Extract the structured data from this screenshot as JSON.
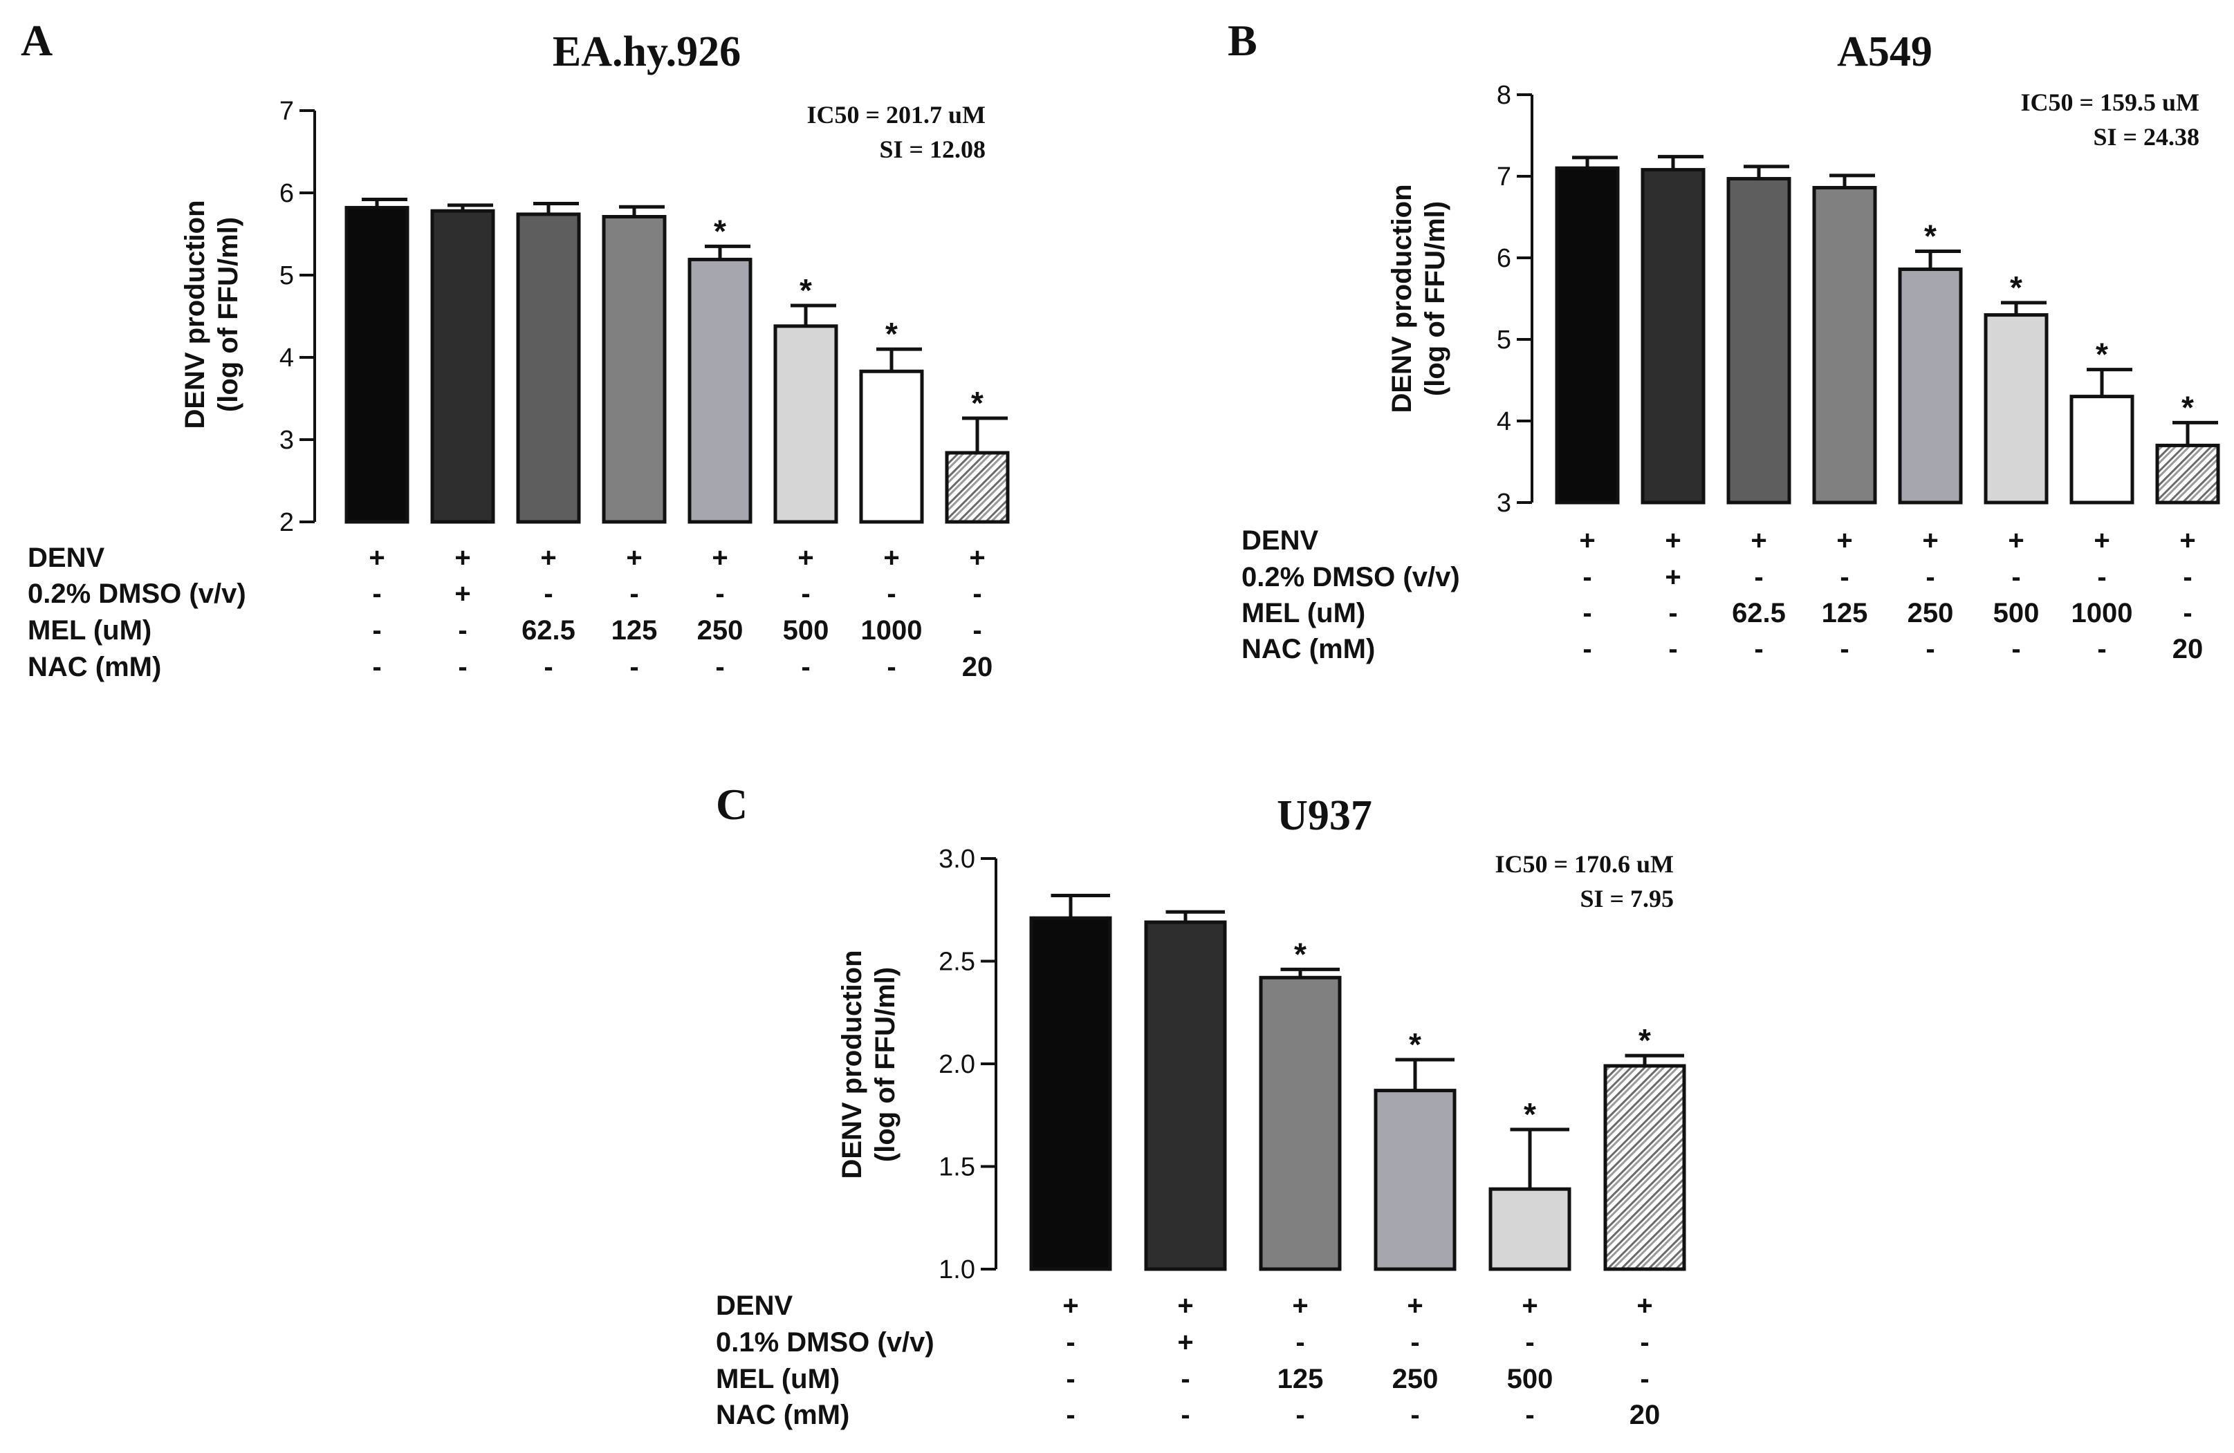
{
  "figure": {
    "colors": {
      "text": "#111111",
      "black": "#0a0a0a",
      "dark": "#2e2e2e",
      "mid_dark": "#5e5e5e",
      "mid": "#808080",
      "light_mid": "#a6a6ae",
      "light": "#d6d6d6",
      "white": "#ffffff",
      "hatch": "#c4c4c4"
    }
  },
  "chart_data": [
    {
      "panel": "A",
      "type": "bar",
      "title": "EA.hy.926",
      "annotation": [
        "IC50 = 201.7 uM",
        "SI = 12.08"
      ],
      "ylabel": [
        "DENV production",
        "(log of  FFU/ml)"
      ],
      "ylim": [
        2,
        7
      ],
      "yticks": [
        "2",
        "3",
        "4",
        "5",
        "6",
        "7"
      ],
      "values": [
        5.82,
        5.78,
        5.74,
        5.71,
        5.19,
        4.38,
        3.83,
        2.84
      ],
      "errors": [
        0.1,
        0.07,
        0.13,
        0.12,
        0.16,
        0.25,
        0.27,
        0.42
      ],
      "significant": [
        false,
        false,
        false,
        false,
        true,
        true,
        true,
        true
      ],
      "sig_marker": "*",
      "fills": [
        "black",
        "dark",
        "mid_dark",
        "mid",
        "light_mid",
        "light",
        "white",
        "hatch"
      ],
      "treatment_rows": [
        {
          "label": "DENV",
          "values": [
            "+",
            "+",
            "+",
            "+",
            "+",
            "+",
            "+",
            "+"
          ]
        },
        {
          "label": "0.2% DMSO (v/v)",
          "values": [
            "-",
            "+",
            "-",
            "-",
            "-",
            "-",
            "-",
            "-"
          ]
        },
        {
          "label": "MEL (uM)",
          "values": [
            "-",
            "-",
            "62.5",
            "125",
            "250",
            "500",
            "1000",
            "-"
          ]
        },
        {
          "label": "NAC (mM)",
          "values": [
            "-",
            "-",
            "-",
            "-",
            "-",
            "-",
            "-",
            "20"
          ]
        }
      ]
    },
    {
      "panel": "B",
      "type": "bar",
      "title": "A549",
      "annotation": [
        "IC50 = 159.5 uM",
        "SI = 24.38"
      ],
      "ylabel": [
        "DENV production",
        "(log of  FFU/ml)"
      ],
      "ylim": [
        3,
        8
      ],
      "yticks": [
        "3",
        "4",
        "5",
        "6",
        "7",
        "8"
      ],
      "values": [
        7.1,
        7.08,
        6.97,
        6.86,
        5.86,
        5.3,
        4.3,
        3.7
      ],
      "errors": [
        0.13,
        0.16,
        0.15,
        0.15,
        0.22,
        0.15,
        0.33,
        0.28
      ],
      "significant": [
        false,
        false,
        false,
        false,
        true,
        true,
        true,
        true
      ],
      "sig_marker": "*",
      "fills": [
        "black",
        "dark",
        "mid_dark",
        "mid",
        "light_mid",
        "light",
        "white",
        "hatch"
      ],
      "treatment_rows": [
        {
          "label": "DENV",
          "values": [
            "+",
            "+",
            "+",
            "+",
            "+",
            "+",
            "+",
            "+"
          ]
        },
        {
          "label": "0.2% DMSO (v/v)",
          "values": [
            "-",
            "+",
            "-",
            "-",
            "-",
            "-",
            "-",
            "-"
          ]
        },
        {
          "label": "MEL (uM)",
          "values": [
            "-",
            "-",
            "62.5",
            "125",
            "250",
            "500",
            "1000",
            "-"
          ]
        },
        {
          "label": "NAC (mM)",
          "values": [
            "-",
            "-",
            "-",
            "-",
            "-",
            "-",
            "-",
            "20"
          ]
        }
      ]
    },
    {
      "panel": "C",
      "type": "bar",
      "title": "U937",
      "annotation": [
        "IC50 = 170.6 uM",
        "SI = 7.95"
      ],
      "ylabel": [
        "DENV production",
        "(log of  FFU/ml)"
      ],
      "ylim": [
        1.0,
        3.0
      ],
      "yticks": [
        "1.0",
        "1.5",
        "2.0",
        "2.5",
        "3.0"
      ],
      "values": [
        2.71,
        2.69,
        2.42,
        1.87,
        1.39,
        1.99
      ],
      "errors": [
        0.11,
        0.05,
        0.04,
        0.15,
        0.29,
        0.05
      ],
      "significant": [
        false,
        false,
        true,
        true,
        true,
        true
      ],
      "sig_marker": "*",
      "fills": [
        "black",
        "dark",
        "mid",
        "light_mid",
        "light",
        "hatch"
      ],
      "treatment_rows": [
        {
          "label": "DENV",
          "values": [
            "+",
            "+",
            "+",
            "+",
            "+",
            "+"
          ]
        },
        {
          "label": "0.1% DMSO (v/v)",
          "values": [
            "-",
            "+",
            "-",
            "-",
            "-",
            "-"
          ]
        },
        {
          "label": "MEL (uM)",
          "values": [
            "-",
            "-",
            "125",
            "250",
            "500",
            "-"
          ]
        },
        {
          "label": "NAC (mM)",
          "values": [
            "-",
            "-",
            "-",
            "-",
            "-",
            "20"
          ]
        }
      ]
    }
  ]
}
